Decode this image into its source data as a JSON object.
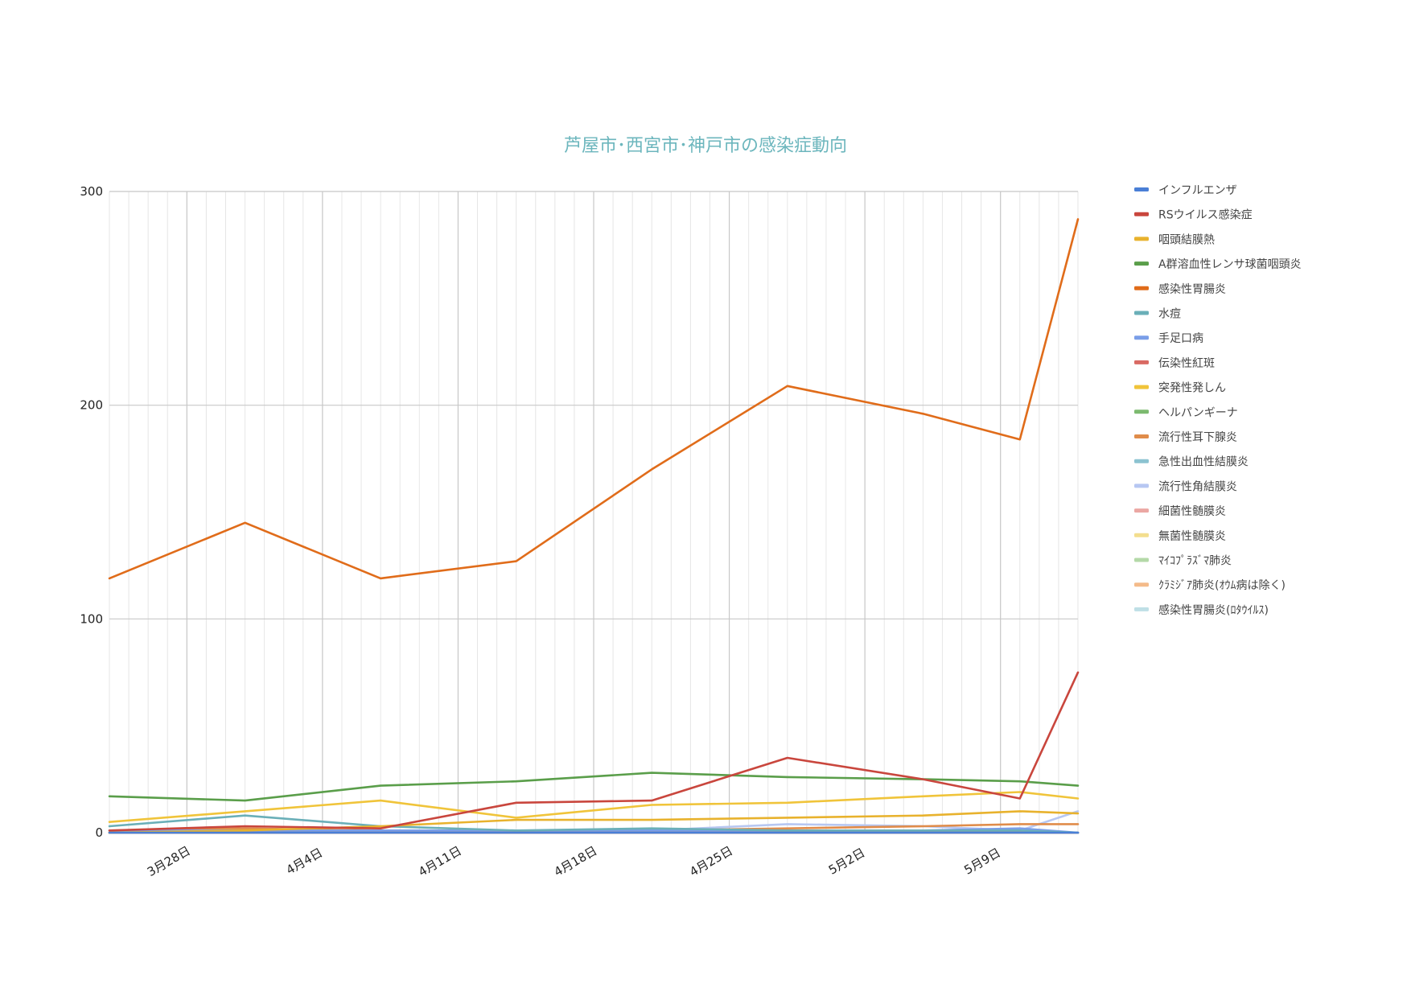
{
  "chart_data": {
    "type": "line",
    "title": "芦屋市･西宮市･神戸市の感染症動向",
    "xlabel": "",
    "ylabel": "",
    "ylim": [
      0,
      300
    ],
    "yticks": [
      0,
      100,
      200,
      300
    ],
    "xlim": [
      "2024-03-24",
      "2024-05-13"
    ],
    "x_tick_labels": [
      {
        "date": "2024-03-28",
        "label": "3月28日"
      },
      {
        "date": "2024-04-04",
        "label": "4月4日"
      },
      {
        "date": "2024-04-11",
        "label": "4月11日"
      },
      {
        "date": "2024-04-18",
        "label": "4月18日"
      },
      {
        "date": "2024-04-25",
        "label": "4月25日"
      },
      {
        "date": "2024-05-02",
        "label": "5月2日"
      },
      {
        "date": "2024-05-09",
        "label": "5月9日"
      }
    ],
    "x": [
      "2024-03-24",
      "2024-03-31",
      "2024-04-07",
      "2024-04-14",
      "2024-04-21",
      "2024-04-28",
      "2024-05-05",
      "2024-05-10",
      "2024-05-13"
    ],
    "grid": true,
    "legend_position": "right",
    "series": [
      {
        "name": "インフルエンザ",
        "color": "#4a7fd6",
        "values": [
          0,
          0,
          0,
          0,
          0,
          0,
          0,
          0,
          0
        ]
      },
      {
        "name": "RSウイルス感染症",
        "color": "#c9463d",
        "values": [
          1,
          3,
          2,
          14,
          15,
          35,
          25,
          16,
          75
        ]
      },
      {
        "name": "咽頭結膜熱",
        "color": "#e8b22d",
        "values": [
          0,
          1,
          3,
          6,
          6,
          7,
          8,
          10,
          9
        ]
      },
      {
        "name": "A群溶血性レンサ球菌咽頭炎",
        "color": "#5a9e4a",
        "values": [
          17,
          15,
          22,
          24,
          28,
          26,
          25,
          24,
          22
        ]
      },
      {
        "name": "感染性胃腸炎",
        "color": "#e06c1a",
        "values": [
          119,
          145,
          119,
          127,
          170,
          209,
          196,
          184,
          287
        ]
      },
      {
        "name": "水痘",
        "color": "#6aafb8",
        "values": [
          3,
          8,
          3,
          1,
          2,
          1,
          1,
          1,
          0
        ]
      },
      {
        "name": "手足口病",
        "color": "#7a9ee8",
        "values": [
          1,
          1,
          1,
          1,
          1,
          1,
          1,
          2,
          0
        ]
      },
      {
        "name": "伝染性紅斑",
        "color": "#d96a63",
        "values": [
          0,
          0,
          0,
          0,
          0,
          0,
          0,
          0,
          0
        ]
      },
      {
        "name": "突発性発しん",
        "color": "#f0c43a",
        "values": [
          5,
          10,
          15,
          7,
          13,
          14,
          17,
          19,
          16
        ]
      },
      {
        "name": "ヘルパンギーナ",
        "color": "#7cba6f",
        "values": [
          0,
          0,
          0,
          0,
          0,
          0,
          0,
          0,
          0
        ]
      },
      {
        "name": "流行性耳下腺炎",
        "color": "#e08c4a",
        "values": [
          1,
          2,
          1,
          1,
          1,
          2,
          3,
          4,
          4
        ]
      },
      {
        "name": "急性出血性結膜炎",
        "color": "#8cc3d1",
        "values": [
          0,
          0,
          0,
          0,
          0,
          0,
          0,
          0,
          0
        ]
      },
      {
        "name": "流行性角結膜炎",
        "color": "#b7c7f2",
        "values": [
          0,
          0,
          1,
          1,
          1,
          4,
          3,
          1,
          10
        ]
      },
      {
        "name": "細菌性髄膜炎",
        "color": "#eba7a3",
        "values": [
          0,
          0,
          0,
          0,
          0,
          0,
          0,
          0,
          0
        ]
      },
      {
        "name": "無菌性髄膜炎",
        "color": "#f3de8e",
        "values": [
          0,
          0,
          0,
          0,
          0,
          0,
          0,
          0,
          0
        ]
      },
      {
        "name": "ﾏｲｺﾌﾟﾗｽﾞﾏ肺炎",
        "color": "#b4d9a8",
        "values": [
          0,
          0,
          0,
          0,
          0,
          0,
          0,
          0,
          0
        ]
      },
      {
        "name": "ｸﾗﾐｼﾞｱ肺炎(ｵｳﾑ病は除く)",
        "color": "#f4bb8a",
        "values": [
          0,
          0,
          0,
          0,
          0,
          0,
          0,
          0,
          0
        ]
      },
      {
        "name": "感染性胃腸炎(ﾛﾀｳｲﾙｽ)",
        "color": "#bfdfe6",
        "values": [
          0,
          0,
          0,
          0,
          0,
          0,
          0,
          0,
          0
        ]
      }
    ]
  }
}
